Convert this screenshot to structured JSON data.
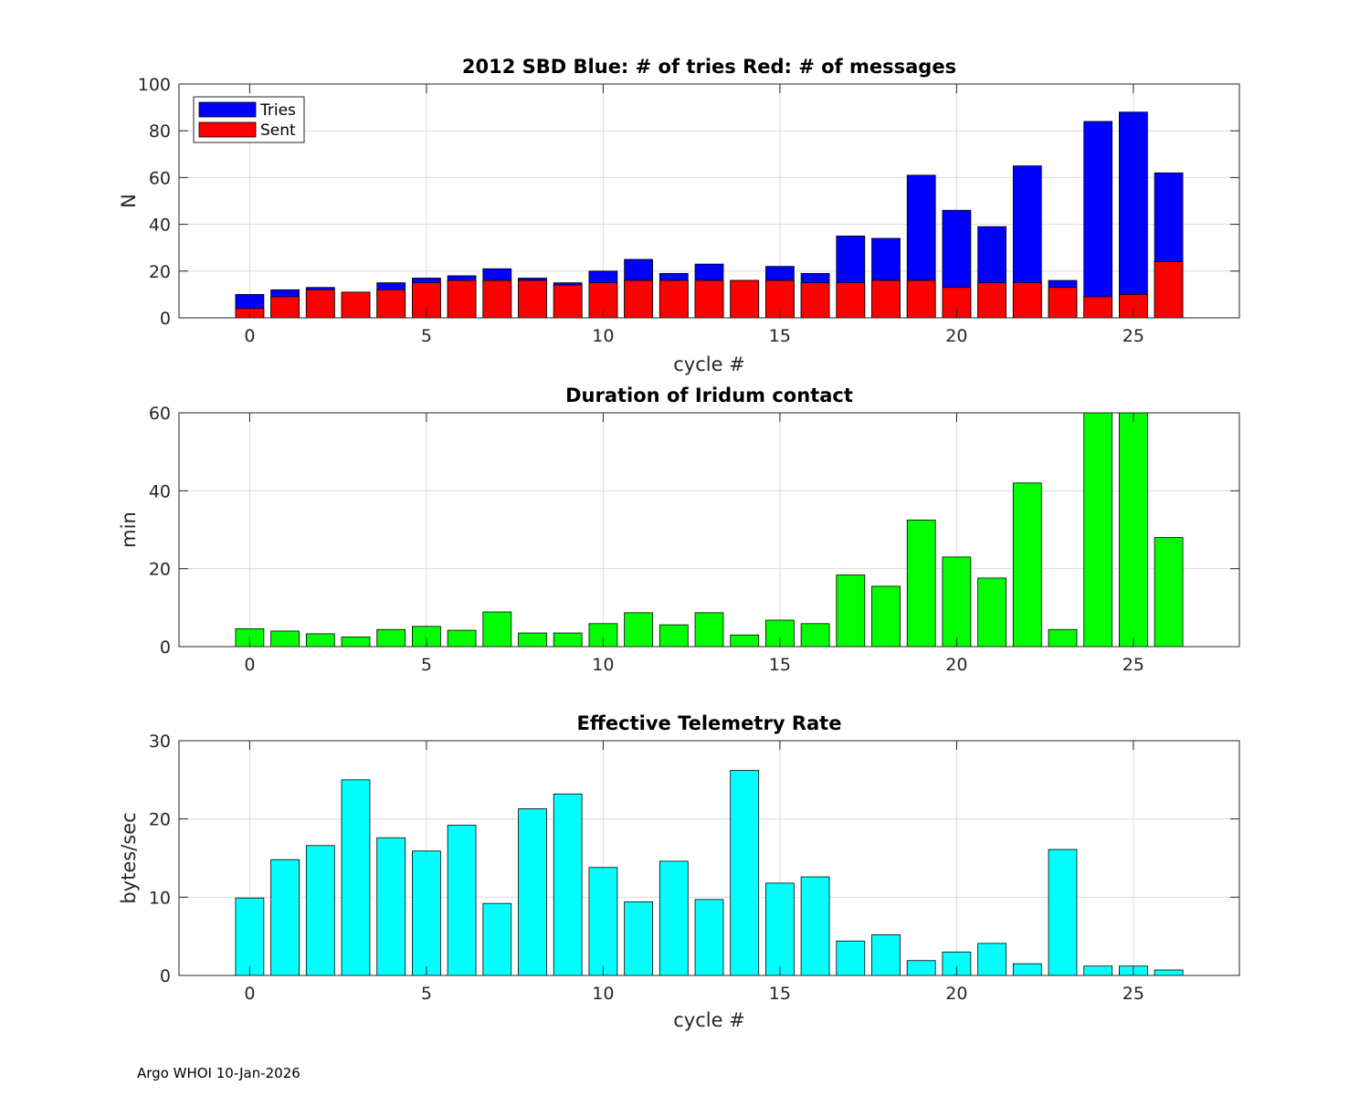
{
  "footer": "Argo WHOI 10-Jan-2026",
  "colors": {
    "tries": "#0000ff",
    "sent": "#ff0000",
    "duration": "#00ff00",
    "rate": "#00ffff"
  },
  "chart_data": [
    {
      "type": "bar",
      "stacked": true,
      "title": "2012 SBD  Blue: # of tries   Red: # of messages",
      "xlabel": "cycle #",
      "ylabel": "N",
      "xlim": [
        -2,
        28
      ],
      "ylim": [
        0,
        100
      ],
      "xticks": [
        0,
        5,
        10,
        15,
        20,
        25
      ],
      "yticks": [
        0,
        20,
        40,
        60,
        80,
        100
      ],
      "grid": true,
      "legend": {
        "position": "top-left",
        "entries": [
          "Tries",
          "Sent"
        ]
      },
      "x": [
        0,
        1,
        2,
        3,
        4,
        5,
        6,
        7,
        8,
        9,
        10,
        11,
        12,
        13,
        14,
        15,
        16,
        17,
        18,
        19,
        20,
        21,
        22,
        23,
        24,
        25,
        26
      ],
      "series": [
        {
          "name": "Tries",
          "color": "#0000ff",
          "values": [
            10,
            12,
            13,
            11,
            15,
            17,
            18,
            21,
            17,
            15,
            20,
            25,
            19,
            23,
            16,
            22,
            19,
            35,
            34,
            61,
            46,
            39,
            65,
            16,
            84,
            88,
            62
          ]
        },
        {
          "name": "Sent",
          "color": "#ff0000",
          "values": [
            4,
            9,
            12,
            11,
            12,
            15,
            16,
            16,
            16,
            14,
            15,
            16,
            16,
            16,
            16,
            16,
            15,
            15,
            16,
            16,
            13,
            15,
            15,
            13,
            9,
            10,
            24
          ]
        }
      ]
    },
    {
      "type": "bar",
      "title": "Duration of Iridum contact",
      "xlabel": "",
      "ylabel": "min",
      "xlim": [
        -2,
        28
      ],
      "ylim": [
        0,
        60
      ],
      "xticks": [
        0,
        5,
        10,
        15,
        20,
        25
      ],
      "yticks": [
        0,
        20,
        40,
        60
      ],
      "grid": true,
      "x": [
        -1,
        0,
        1,
        2,
        3,
        4,
        5,
        6,
        7,
        8,
        9,
        10,
        11,
        12,
        13,
        14,
        15,
        16,
        17,
        18,
        19,
        20,
        21,
        22,
        23,
        24,
        25,
        26
      ],
      "values": [
        0,
        4.6,
        4,
        3.3,
        2.5,
        4.4,
        5.2,
        4.2,
        8.9,
        3.5,
        3.5,
        5.9,
        8.7,
        5.6,
        8.7,
        3,
        6.8,
        5.9,
        18.4,
        15.5,
        32.5,
        23,
        17.6,
        42,
        4.4,
        61,
        61,
        28
      ],
      "color": "#00ff00"
    },
    {
      "type": "bar",
      "title": "Effective Telemetry Rate",
      "xlabel": "cycle #",
      "ylabel": "bytes/sec",
      "xlim": [
        -2,
        28
      ],
      "ylim": [
        0,
        30
      ],
      "xticks": [
        0,
        5,
        10,
        15,
        20,
        25
      ],
      "yticks": [
        0,
        10,
        20,
        30
      ],
      "grid": true,
      "x": [
        0,
        1,
        2,
        3,
        4,
        5,
        6,
        7,
        8,
        9,
        10,
        11,
        12,
        13,
        14,
        15,
        16,
        17,
        18,
        19,
        20,
        21,
        22,
        23,
        24,
        25,
        26
      ],
      "values": [
        9.9,
        14.8,
        16.6,
        25,
        17.6,
        15.9,
        19.2,
        9.2,
        21.3,
        23.2,
        13.8,
        9.4,
        14.6,
        9.7,
        26.2,
        11.8,
        12.6,
        4.4,
        5.2,
        1.9,
        3,
        4.1,
        1.5,
        16.1,
        1.2,
        1.2,
        0.7
      ],
      "color": "#00ffff"
    }
  ]
}
